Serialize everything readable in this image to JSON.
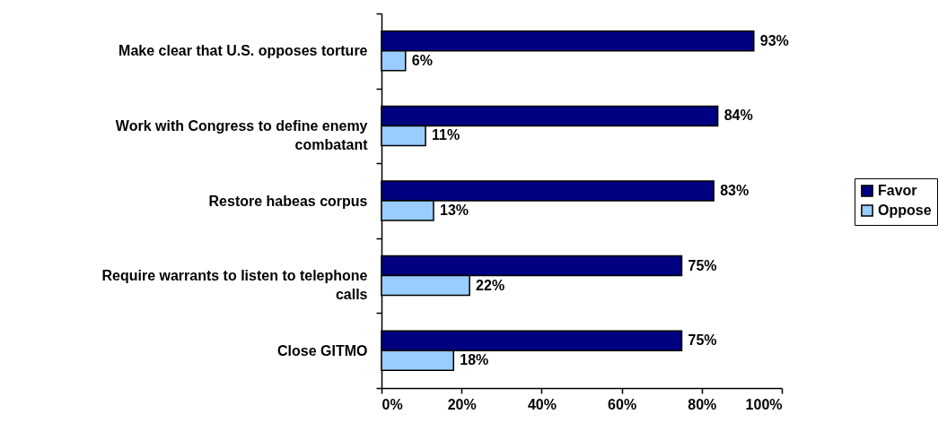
{
  "chart_data": {
    "type": "bar",
    "orientation": "horizontal",
    "categories": [
      "Make clear that U.S. opposes torture",
      "Work with Congress to define enemy combatant",
      "Restore habeas corpus",
      "Require warrants to listen to telephone calls",
      "Close GITMO"
    ],
    "series": [
      {
        "name": "Favor",
        "color": "#000080",
        "values": [
          93,
          84,
          83,
          75,
          75
        ],
        "value_labels": [
          "93%",
          "84%",
          "83%",
          "75%",
          "75%"
        ]
      },
      {
        "name": "Oppose",
        "color": "#99ccff",
        "values": [
          6,
          11,
          13,
          22,
          18
        ],
        "value_labels": [
          "6%",
          "11%",
          "13%",
          "22%",
          "18%"
        ]
      }
    ],
    "xlim": [
      0,
      100
    ],
    "xticks": [
      {
        "value": 0,
        "label": "0%"
      },
      {
        "value": 20,
        "label": "20%"
      },
      {
        "value": 40,
        "label": "40%"
      },
      {
        "value": 60,
        "label": "60%"
      },
      {
        "value": 80,
        "label": "80%"
      },
      {
        "value": 100,
        "label": "100%"
      }
    ],
    "grid": false,
    "legend": "right"
  }
}
